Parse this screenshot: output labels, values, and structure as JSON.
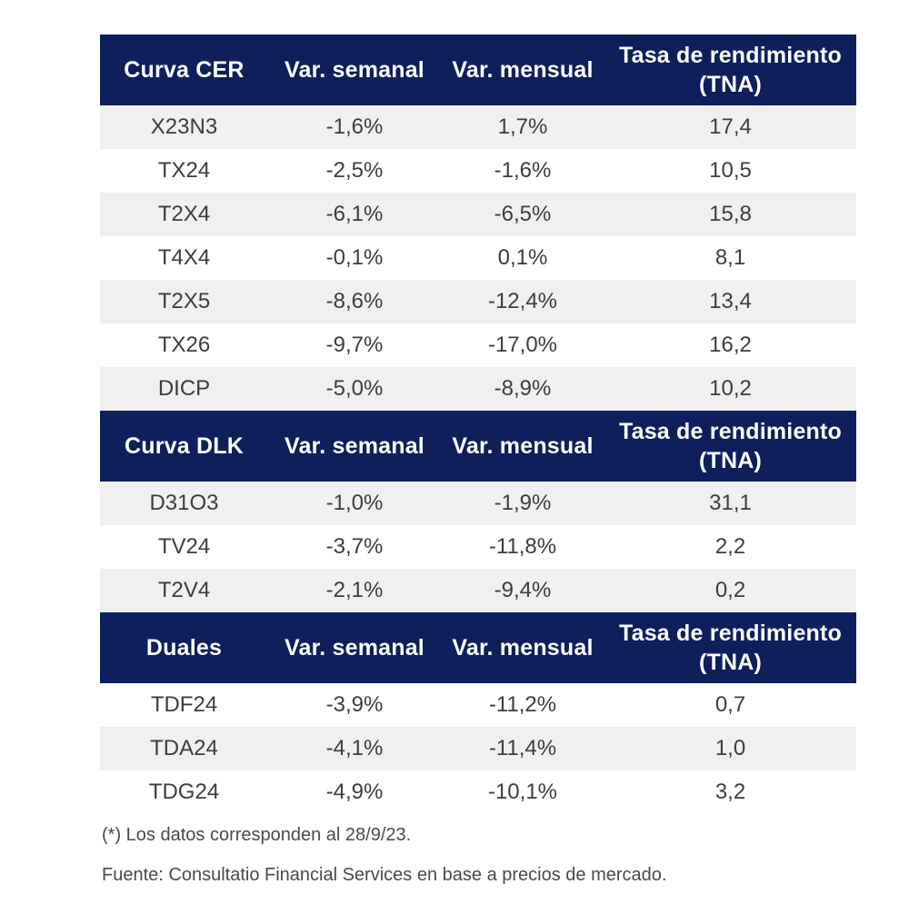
{
  "sections": [
    {
      "headers": [
        "Curva CER",
        "Var. semanal",
        "Var. mensual",
        "Tasa de rendimiento (TNA)"
      ],
      "rows": [
        [
          "X23N3",
          "-1,6%",
          "1,7%",
          "17,4"
        ],
        [
          "TX24",
          "-2,5%",
          "-1,6%",
          "10,5"
        ],
        [
          "T2X4",
          "-6,1%",
          "-6,5%",
          "15,8"
        ],
        [
          "T4X4",
          "-0,1%",
          "0,1%",
          "8,1"
        ],
        [
          "T2X5",
          "-8,6%",
          "-12,4%",
          "13,4"
        ],
        [
          "TX26",
          "-9,7%",
          "-17,0%",
          "16,2"
        ],
        [
          "DICP",
          "-5,0%",
          "-8,9%",
          "10,2"
        ]
      ]
    },
    {
      "headers": [
        "Curva DLK",
        "Var. semanal",
        "Var. mensual",
        "Tasa de rendimiento (TNA)"
      ],
      "rows": [
        [
          "D31O3",
          "-1,0%",
          "-1,9%",
          "31,1"
        ],
        [
          "TV24",
          "-3,7%",
          "-11,8%",
          "2,2"
        ],
        [
          "T2V4",
          "-2,1%",
          "-9,4%",
          "0,2"
        ]
      ]
    },
    {
      "headers": [
        "Duales",
        "Var. semanal",
        "Var. mensual",
        "Tasa de rendimiento (TNA)"
      ],
      "rows": [
        [
          "TDF24",
          "-3,9%",
          "-11,2%",
          "0,7"
        ],
        [
          "TDA24",
          "-4,1%",
          "-11,4%",
          "1,0"
        ],
        [
          "TDG24",
          "-4,9%",
          "-10,1%",
          "3,2"
        ]
      ]
    }
  ],
  "footnotes": {
    "note": "(*) Los datos corresponden al 28/9/23.",
    "source": "Fuente: Consultatio Financial Services en base a precios de mercado."
  },
  "colors": {
    "header_bg": "#0f1f5c",
    "row_shade": "#f0f0f0"
  }
}
